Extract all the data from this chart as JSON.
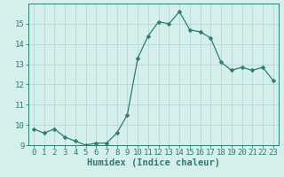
{
  "xlabel": "Humidex (Indice chaleur)",
  "x_values": [
    0,
    1,
    2,
    3,
    4,
    5,
    6,
    7,
    8,
    9,
    10,
    11,
    12,
    13,
    14,
    15,
    16,
    17,
    18,
    19,
    20,
    21,
    22,
    23
  ],
  "y_values": [
    9.8,
    9.6,
    9.8,
    9.4,
    9.2,
    9.0,
    9.1,
    9.1,
    9.6,
    10.5,
    13.3,
    14.4,
    15.1,
    15.0,
    15.6,
    14.7,
    14.6,
    14.3,
    13.1,
    12.7,
    12.85,
    12.7,
    12.85,
    12.2
  ],
  "line_color": "#2e7d6e",
  "marker": "D",
  "marker_size": 2.5,
  "bg_color": "#d5efed",
  "grid_color": "#b8d8d5",
  "tick_color": "#2e7d6e",
  "label_color": "#2e7d6e",
  "ylim": [
    9,
    16
  ],
  "xlim": [
    -0.5,
    23.5
  ],
  "yticks": [
    9,
    10,
    11,
    12,
    13,
    14,
    15
  ],
  "xtick_labels": [
    "0",
    "1",
    "2",
    "3",
    "4",
    "5",
    "6",
    "7",
    "8",
    "9",
    "10",
    "11",
    "12",
    "13",
    "14",
    "15",
    "16",
    "17",
    "18",
    "19",
    "20",
    "21",
    "22",
    "23"
  ],
  "spine_color": "#2e7d6e",
  "xlabel_fontsize": 7.5,
  "tick_fontsize": 6.5
}
